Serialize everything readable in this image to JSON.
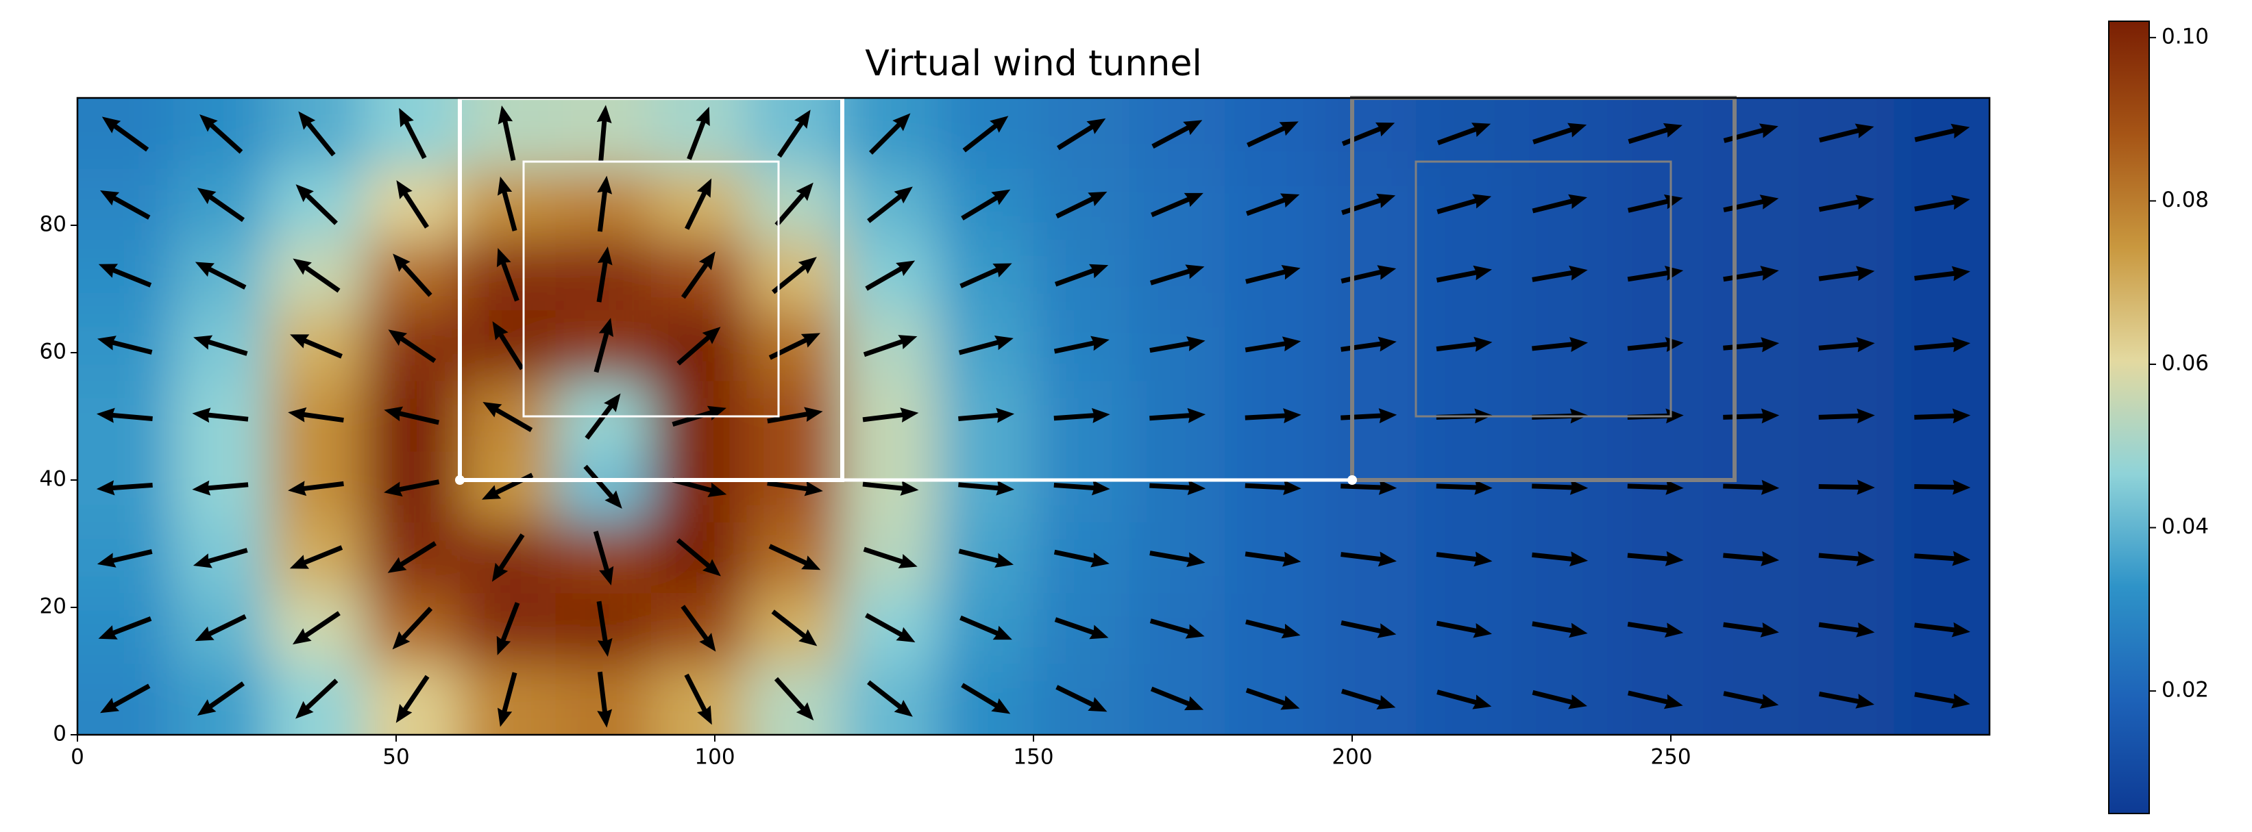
{
  "chart_data": {
    "type": "heatmap",
    "title": "Virtual wind tunnel",
    "x": [
      7.5,
      22.5,
      37.5,
      52.5,
      67.5,
      82.5,
      97.5,
      112.5,
      127.5,
      142.5,
      157.5,
      172.5,
      187.5,
      202.5,
      217.5,
      232.5,
      247.5,
      262.5,
      277.5,
      292.5
    ],
    "y": [
      94.4,
      83.3,
      72.2,
      61.1,
      50,
      38.9,
      27.8,
      16.7,
      5.6
    ],
    "values": [
      [
        0.027,
        0.031,
        0.038,
        0.046,
        0.053,
        0.054,
        0.05,
        0.042,
        0.034,
        0.028,
        0.025,
        0.022,
        0.019,
        0.016,
        0.014,
        0.013,
        0.011,
        0.01,
        0.009,
        0.008
      ],
      [
        0.029,
        0.035,
        0.046,
        0.062,
        0.076,
        0.079,
        0.069,
        0.052,
        0.04,
        0.031,
        0.026,
        0.023,
        0.02,
        0.017,
        0.015,
        0.013,
        0.011,
        0.01,
        0.009,
        0.008
      ],
      [
        0.031,
        0.04,
        0.056,
        0.083,
        0.098,
        0.099,
        0.091,
        0.067,
        0.045,
        0.034,
        0.027,
        0.023,
        0.02,
        0.017,
        0.015,
        0.013,
        0.011,
        0.01,
        0.009,
        0.008
      ],
      [
        0.033,
        0.044,
        0.069,
        0.097,
        0.1,
        0.096,
        0.102,
        0.082,
        0.052,
        0.036,
        0.028,
        0.024,
        0.02,
        0.017,
        0.015,
        0.013,
        0.011,
        0.01,
        0.009,
        0.008
      ],
      [
        0.034,
        0.047,
        0.076,
        0.102,
        0.078,
        0.048,
        0.1,
        0.09,
        0.055,
        0.038,
        0.029,
        0.024,
        0.02,
        0.017,
        0.015,
        0.013,
        0.011,
        0.01,
        0.009,
        0.008
      ],
      [
        0.034,
        0.047,
        0.076,
        0.102,
        0.075,
        0.042,
        0.1,
        0.09,
        0.055,
        0.038,
        0.029,
        0.024,
        0.02,
        0.017,
        0.015,
        0.013,
        0.011,
        0.01,
        0.009,
        0.008
      ],
      [
        0.033,
        0.044,
        0.07,
        0.098,
        0.099,
        0.094,
        0.102,
        0.083,
        0.053,
        0.036,
        0.028,
        0.024,
        0.02,
        0.017,
        0.015,
        0.013,
        0.011,
        0.01,
        0.009,
        0.008
      ],
      [
        0.031,
        0.04,
        0.057,
        0.084,
        0.099,
        0.1,
        0.092,
        0.069,
        0.046,
        0.034,
        0.027,
        0.023,
        0.02,
        0.017,
        0.015,
        0.013,
        0.011,
        0.01,
        0.009,
        0.008
      ],
      [
        0.029,
        0.035,
        0.047,
        0.063,
        0.078,
        0.081,
        0.071,
        0.053,
        0.041,
        0.031,
        0.026,
        0.023,
        0.02,
        0.017,
        0.015,
        0.013,
        0.011,
        0.01,
        0.009,
        0.008
      ]
    ],
    "quiver": {
      "color": "#000000",
      "angles": [
        [
          144,
          138,
          129,
          117,
          102,
          85,
          69,
          56,
          45,
          38,
          32,
          28,
          25,
          22,
          20,
          18,
          17,
          15,
          14,
          13
        ],
        [
          151,
          145,
          136,
          123,
          105,
          83,
          64,
          49,
          38,
          31,
          26,
          23,
          20,
          18,
          16,
          14,
          13,
          12,
          11,
          10
        ],
        [
          158,
          153,
          145,
          132,
          110,
          81,
          55,
          39,
          30,
          24,
          20,
          17,
          14,
          13,
          11,
          10,
          9,
          9,
          8,
          7
        ],
        [
          166,
          163,
          157,
          146,
          122,
          75,
          41,
          26,
          19,
          15,
          12,
          10,
          9,
          8,
          7,
          6,
          6,
          5,
          5,
          5
        ],
        [
          175,
          174,
          172,
          167,
          150,
          53,
          17,
          10,
          7,
          5,
          4,
          4,
          3,
          3,
          2,
          2,
          2,
          2,
          2,
          2
        ],
        [
          -176,
          -175,
          -173,
          -169,
          -154,
          -49,
          -15,
          -8,
          -6,
          -5,
          -4,
          -3,
          -3,
          -2,
          -2,
          -2,
          -2,
          -2,
          -1,
          -1
        ],
        [
          -167,
          -164,
          -158,
          -148,
          -123,
          -74,
          -40,
          -25,
          -18,
          -14,
          -12,
          -10,
          -8,
          -7,
          -7,
          -6,
          -5,
          -5,
          -5,
          -4
        ],
        [
          -159,
          -154,
          -146,
          -133,
          -111,
          -81,
          -54,
          -38,
          -29,
          -23,
          -19,
          -16,
          -14,
          -12,
          -11,
          -10,
          -9,
          -8,
          -8,
          -7
        ],
        [
          -151,
          -145,
          -137,
          -124,
          -105,
          -83,
          -63,
          -48,
          -38,
          -31,
          -26,
          -22,
          -19,
          -17,
          -15,
          -14,
          -13,
          -12,
          -11,
          -10
        ]
      ]
    },
    "shapes": [
      {
        "x": [
          60,
          120
        ],
        "y": [
          40,
          100
        ],
        "color": "#ffffff"
      },
      {
        "x": [
          70,
          110
        ],
        "y": [
          50,
          90
        ],
        "color": "#ffffff"
      },
      {
        "x": [
          200,
          260
        ],
        "y": [
          40,
          100
        ],
        "color": "#808080"
      },
      {
        "x": [
          210,
          250
        ],
        "y": [
          50,
          90
        ],
        "color": "#808080"
      }
    ],
    "segment": {
      "x": [
        60,
        200
      ],
      "y": [
        40,
        40
      ],
      "color": "#ffffff"
    },
    "xlim": [
      0,
      300
    ],
    "ylim": [
      0,
      100
    ],
    "xticks": [
      0,
      50,
      100,
      150,
      200,
      250
    ],
    "yticks": [
      0,
      20,
      40,
      60,
      80
    ],
    "colormap": [
      "#0d3a94",
      "#1d62b8",
      "#2e93c8",
      "#8fd3d8",
      "#e3d9a0",
      "#c9983f",
      "#a65516",
      "#7a1f03"
    ],
    "clim": [
      0.005,
      0.102
    ],
    "cticks": [
      0.02,
      0.04,
      0.06,
      0.08,
      {
        "value": 0.1,
        "label": "0.10"
      }
    ]
  }
}
